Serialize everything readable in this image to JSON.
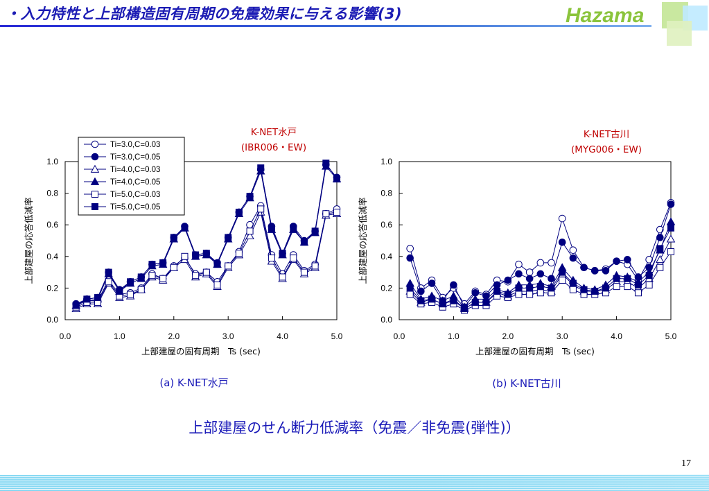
{
  "slide": {
    "title": "・入力特性と上部構造固有周期の免震効果に与える影響(3)",
    "logo": "Hazama",
    "caption": "上部建屋のせん断力低減率（免震／非免震(弾性)）",
    "page_number": "17"
  },
  "colors": {
    "title": "#1c1cb4",
    "series": "#000080",
    "annotation": "#c00000",
    "logo": "#8bc43c"
  },
  "chart_data": [
    {
      "type": "line",
      "annotation_line1": "K-NET水戸",
      "annotation_line2": "(IBR006・EW)",
      "subcaption": "(a) K-NET水戸",
      "xlabel": "上部建屋の固有周期　Ts (sec)",
      "ylabel": "上部建屋の応答低減率",
      "xlim": [
        0,
        5
      ],
      "ylim": [
        0,
        1
      ],
      "xticks": [
        "0.0",
        "1.0",
        "2.0",
        "3.0",
        "4.0",
        "5.0"
      ],
      "yticks": [
        "0.0",
        "0.2",
        "0.4",
        "0.6",
        "0.8",
        "1.0"
      ],
      "legend_position": "top-left",
      "x": [
        0.2,
        0.4,
        0.6,
        0.8,
        1.0,
        1.2,
        1.4,
        1.6,
        1.8,
        2.0,
        2.2,
        2.4,
        2.6,
        2.8,
        3.0,
        3.2,
        3.4,
        3.6,
        3.8,
        4.0,
        4.2,
        4.4,
        4.6,
        4.8,
        5.0
      ],
      "series": [
        {
          "name": "Ti=3.0,C=0.03",
          "marker": "circle-open",
          "values": [
            0.1,
            0.12,
            0.12,
            0.25,
            0.16,
            0.17,
            0.2,
            0.29,
            0.26,
            0.34,
            0.39,
            0.29,
            0.3,
            0.24,
            0.34,
            0.43,
            0.6,
            0.72,
            0.41,
            0.29,
            0.41,
            0.31,
            0.35,
            0.67,
            0.7
          ]
        },
        {
          "name": "Ti=3.0,C=0.05",
          "marker": "circle-filled",
          "values": [
            0.1,
            0.13,
            0.14,
            0.3,
            0.19,
            0.24,
            0.27,
            0.35,
            0.36,
            0.52,
            0.59,
            0.41,
            0.42,
            0.36,
            0.52,
            0.68,
            0.78,
            0.95,
            0.59,
            0.42,
            0.59,
            0.5,
            0.56,
            0.98,
            0.9
          ]
        },
        {
          "name": "Ti=4.0,C=0.03",
          "marker": "triangle-open",
          "values": [
            0.07,
            0.1,
            0.1,
            0.23,
            0.14,
            0.15,
            0.19,
            0.27,
            0.25,
            0.33,
            0.38,
            0.27,
            0.29,
            0.21,
            0.33,
            0.41,
            0.53,
            0.68,
            0.37,
            0.26,
            0.38,
            0.29,
            0.33,
            0.66,
            0.67
          ]
        },
        {
          "name": "Ti=4.0,C=0.05",
          "marker": "triangle-filled",
          "values": [
            0.09,
            0.12,
            0.13,
            0.29,
            0.18,
            0.23,
            0.26,
            0.34,
            0.35,
            0.51,
            0.58,
            0.4,
            0.41,
            0.35,
            0.51,
            0.67,
            0.77,
            0.94,
            0.57,
            0.41,
            0.57,
            0.49,
            0.55,
            0.97,
            0.89
          ]
        },
        {
          "name": "Ti=5.0,C=0.03",
          "marker": "square-open",
          "values": [
            0.08,
            0.11,
            0.11,
            0.24,
            0.15,
            0.16,
            0.19,
            0.28,
            0.26,
            0.33,
            0.4,
            0.28,
            0.3,
            0.22,
            0.34,
            0.42,
            0.56,
            0.7,
            0.39,
            0.27,
            0.39,
            0.3,
            0.34,
            0.67,
            0.68
          ]
        },
        {
          "name": "Ti=5.0,C=0.05",
          "marker": "square-filled",
          "values": [
            0.09,
            0.13,
            0.14,
            0.3,
            0.18,
            0.24,
            0.27,
            0.35,
            0.36,
            0.52,
            0.58,
            0.41,
            0.42,
            0.35,
            0.52,
            0.68,
            0.78,
            0.96,
            0.58,
            0.42,
            0.58,
            0.49,
            0.56,
            0.99,
            0.89
          ]
        }
      ]
    },
    {
      "type": "line",
      "annotation_line1": "K-NET古川",
      "annotation_line2": "(MYG006・EW)",
      "subcaption": "(b) K-NET古川",
      "xlabel": "上部建屋の固有周期　Ts (sec)",
      "ylabel": "上部建屋の応答低減率",
      "xlim": [
        0,
        5
      ],
      "ylim": [
        0,
        1
      ],
      "xticks": [
        "0.0",
        "1.0",
        "2.0",
        "3.0",
        "4.0",
        "5.0"
      ],
      "yticks": [
        "0.0",
        "0.2",
        "0.4",
        "0.6",
        "0.8",
        "1.0"
      ],
      "x": [
        0.2,
        0.4,
        0.6,
        0.8,
        1.0,
        1.2,
        1.4,
        1.6,
        1.8,
        2.0,
        2.2,
        2.4,
        2.6,
        2.8,
        3.0,
        3.2,
        3.4,
        3.6,
        3.8,
        4.0,
        4.2,
        4.4,
        4.6,
        4.8,
        5.0
      ],
      "series": [
        {
          "name": "Ti=3.0,C=0.03",
          "marker": "circle-open",
          "values": [
            0.45,
            0.2,
            0.25,
            0.14,
            0.2,
            0.1,
            0.18,
            0.16,
            0.25,
            0.24,
            0.35,
            0.3,
            0.36,
            0.36,
            0.64,
            0.44,
            0.33,
            0.31,
            0.32,
            0.37,
            0.35,
            0.25,
            0.38,
            0.57,
            0.74
          ]
        },
        {
          "name": "Ti=3.0,C=0.05",
          "marker": "circle-filled",
          "values": [
            0.39,
            0.18,
            0.23,
            0.12,
            0.22,
            0.08,
            0.17,
            0.15,
            0.22,
            0.25,
            0.29,
            0.26,
            0.29,
            0.26,
            0.49,
            0.39,
            0.33,
            0.31,
            0.31,
            0.37,
            0.38,
            0.27,
            0.33,
            0.52,
            0.73
          ]
        },
        {
          "name": "Ti=4.0,C=0.03",
          "marker": "triangle-open",
          "values": [
            0.18,
            0.11,
            0.13,
            0.1,
            0.13,
            0.07,
            0.11,
            0.11,
            0.17,
            0.15,
            0.18,
            0.18,
            0.19,
            0.18,
            0.29,
            0.22,
            0.18,
            0.18,
            0.19,
            0.24,
            0.24,
            0.2,
            0.26,
            0.38,
            0.51
          ]
        },
        {
          "name": "Ti=4.0,C=0.05",
          "marker": "triangle-filled",
          "values": [
            0.23,
            0.13,
            0.15,
            0.12,
            0.15,
            0.08,
            0.13,
            0.13,
            0.19,
            0.17,
            0.22,
            0.22,
            0.23,
            0.21,
            0.33,
            0.25,
            0.2,
            0.19,
            0.22,
            0.28,
            0.27,
            0.24,
            0.3,
            0.44,
            0.62
          ]
        },
        {
          "name": "Ti=5.0,C=0.03",
          "marker": "square-open",
          "values": [
            0.16,
            0.1,
            0.11,
            0.08,
            0.1,
            0.06,
            0.09,
            0.09,
            0.15,
            0.14,
            0.16,
            0.16,
            0.17,
            0.17,
            0.25,
            0.19,
            0.16,
            0.16,
            0.17,
            0.21,
            0.21,
            0.17,
            0.22,
            0.33,
            0.43
          ]
        },
        {
          "name": "Ti=5.0,C=0.05",
          "marker": "square-filled",
          "values": [
            0.2,
            0.12,
            0.13,
            0.1,
            0.12,
            0.07,
            0.11,
            0.11,
            0.18,
            0.16,
            0.2,
            0.2,
            0.21,
            0.2,
            0.3,
            0.23,
            0.19,
            0.18,
            0.2,
            0.26,
            0.26,
            0.22,
            0.28,
            0.45,
            0.58
          ]
        }
      ]
    }
  ]
}
